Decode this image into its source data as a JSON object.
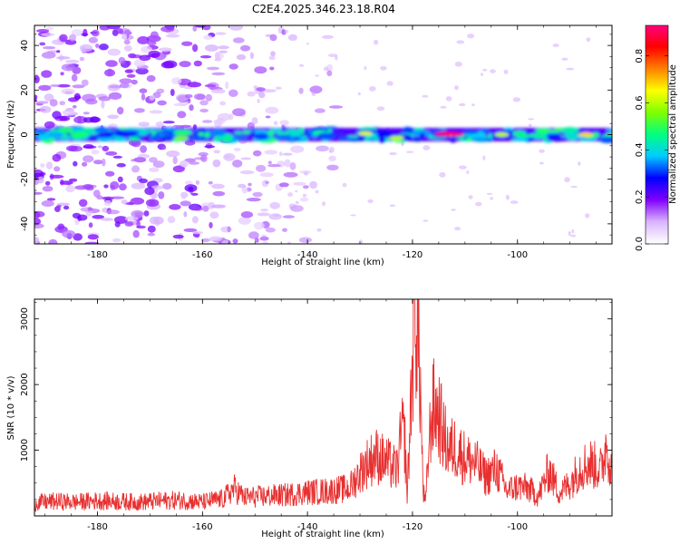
{
  "page": {
    "title": "C2E4.2025.346.23.18.R04"
  },
  "chart_data": [
    {
      "type": "heatmap",
      "title": "C2E4.2025.346.23.18.R04",
      "xlabel": "Height of straight line (km)",
      "ylabel": "Frequency (Hz)",
      "xlim": [
        -192,
        -82
      ],
      "ylim": [
        -49,
        49
      ],
      "xticks": [
        -180,
        -160,
        -140,
        -120,
        -100
      ],
      "xtick_labels": [
        "-180",
        "-160",
        "-140",
        "-120",
        "-100"
      ],
      "yticks": [
        -40,
        -20,
        0,
        20,
        40
      ],
      "ytick_labels": [
        "-40",
        "-20",
        "0",
        "20",
        "40"
      ],
      "description_band": {
        "center_hz": 0,
        "halfwidth_hz": 3
      },
      "peaks": [
        {
          "x": -113,
          "y": 0.3,
          "value": 0.92
        },
        {
          "x": -164,
          "y": -1.5,
          "value": 0.55
        },
        {
          "x": -129,
          "y": 0.5,
          "value": 0.62
        },
        {
          "x": -123,
          "y": -1.5,
          "value": 0.6
        },
        {
          "x": -87,
          "y": 0,
          "value": 0.68
        },
        {
          "x": -103,
          "y": 0,
          "value": 0.6
        }
      ],
      "colorbar": {
        "label": "Normalized spectral amplitude",
        "min": 0.0,
        "max": 0.93,
        "ticks": [
          0.0,
          0.2,
          0.4,
          0.6,
          0.8
        ],
        "tick_labels": [
          "0.0",
          "0.2",
          "0.4",
          "0.6",
          "0.8"
        ],
        "colors": [
          "#ffffff",
          "#d9b3ff",
          "#8000ff",
          "#0000ff",
          "#00ccff",
          "#00ff80",
          "#80ff00",
          "#ffff00",
          "#ff8000",
          "#ff0000",
          "#ff0080"
        ]
      }
    },
    {
      "type": "line",
      "xlabel": "Height of straight line (km)",
      "ylabel": "SNR (10 * v/v)",
      "xlim": [
        -192,
        -82
      ],
      "ylim": [
        0,
        3300
      ],
      "xticks": [
        -180,
        -160,
        -140,
        -120,
        -100
      ],
      "xtick_labels": [
        "-180",
        "-160",
        "-140",
        "-120",
        "-100"
      ],
      "yticks": [
        1000,
        2000,
        3000
      ],
      "ytick_labels": [
        "1000",
        "2000",
        "3000"
      ],
      "series": [
        {
          "name": "SNR",
          "color": "#e83030",
          "x": [
            -192,
            -188,
            -184,
            -180,
            -176,
            -172,
            -168,
            -164,
            -160,
            -156,
            -154,
            -152,
            -148,
            -144,
            -140,
            -136,
            -132,
            -129,
            -127,
            -125,
            -123,
            -122,
            -121.5,
            -121,
            -120,
            -119.5,
            -119,
            -118.5,
            -118,
            -117.5,
            -117,
            -116.5,
            -116,
            -115,
            -114,
            -113,
            -112,
            -110,
            -108,
            -106,
            -104,
            -102,
            -100,
            -98,
            -96,
            -94,
            -92,
            -90,
            -88,
            -86,
            -84,
            -83,
            -82
          ],
          "values": [
            200,
            220,
            210,
            230,
            220,
            210,
            230,
            240,
            210,
            260,
            420,
            280,
            300,
            320,
            360,
            380,
            420,
            780,
            920,
            820,
            700,
            1280,
            1200,
            300,
            2400,
            3250,
            2800,
            2000,
            400,
            180,
            900,
            1450,
            1650,
            1550,
            1200,
            1000,
            1050,
            880,
            800,
            600,
            720,
            380,
            450,
            420,
            300,
            700,
            350,
            500,
            750,
            800,
            700,
            1150,
            600
          ]
        }
      ]
    }
  ]
}
